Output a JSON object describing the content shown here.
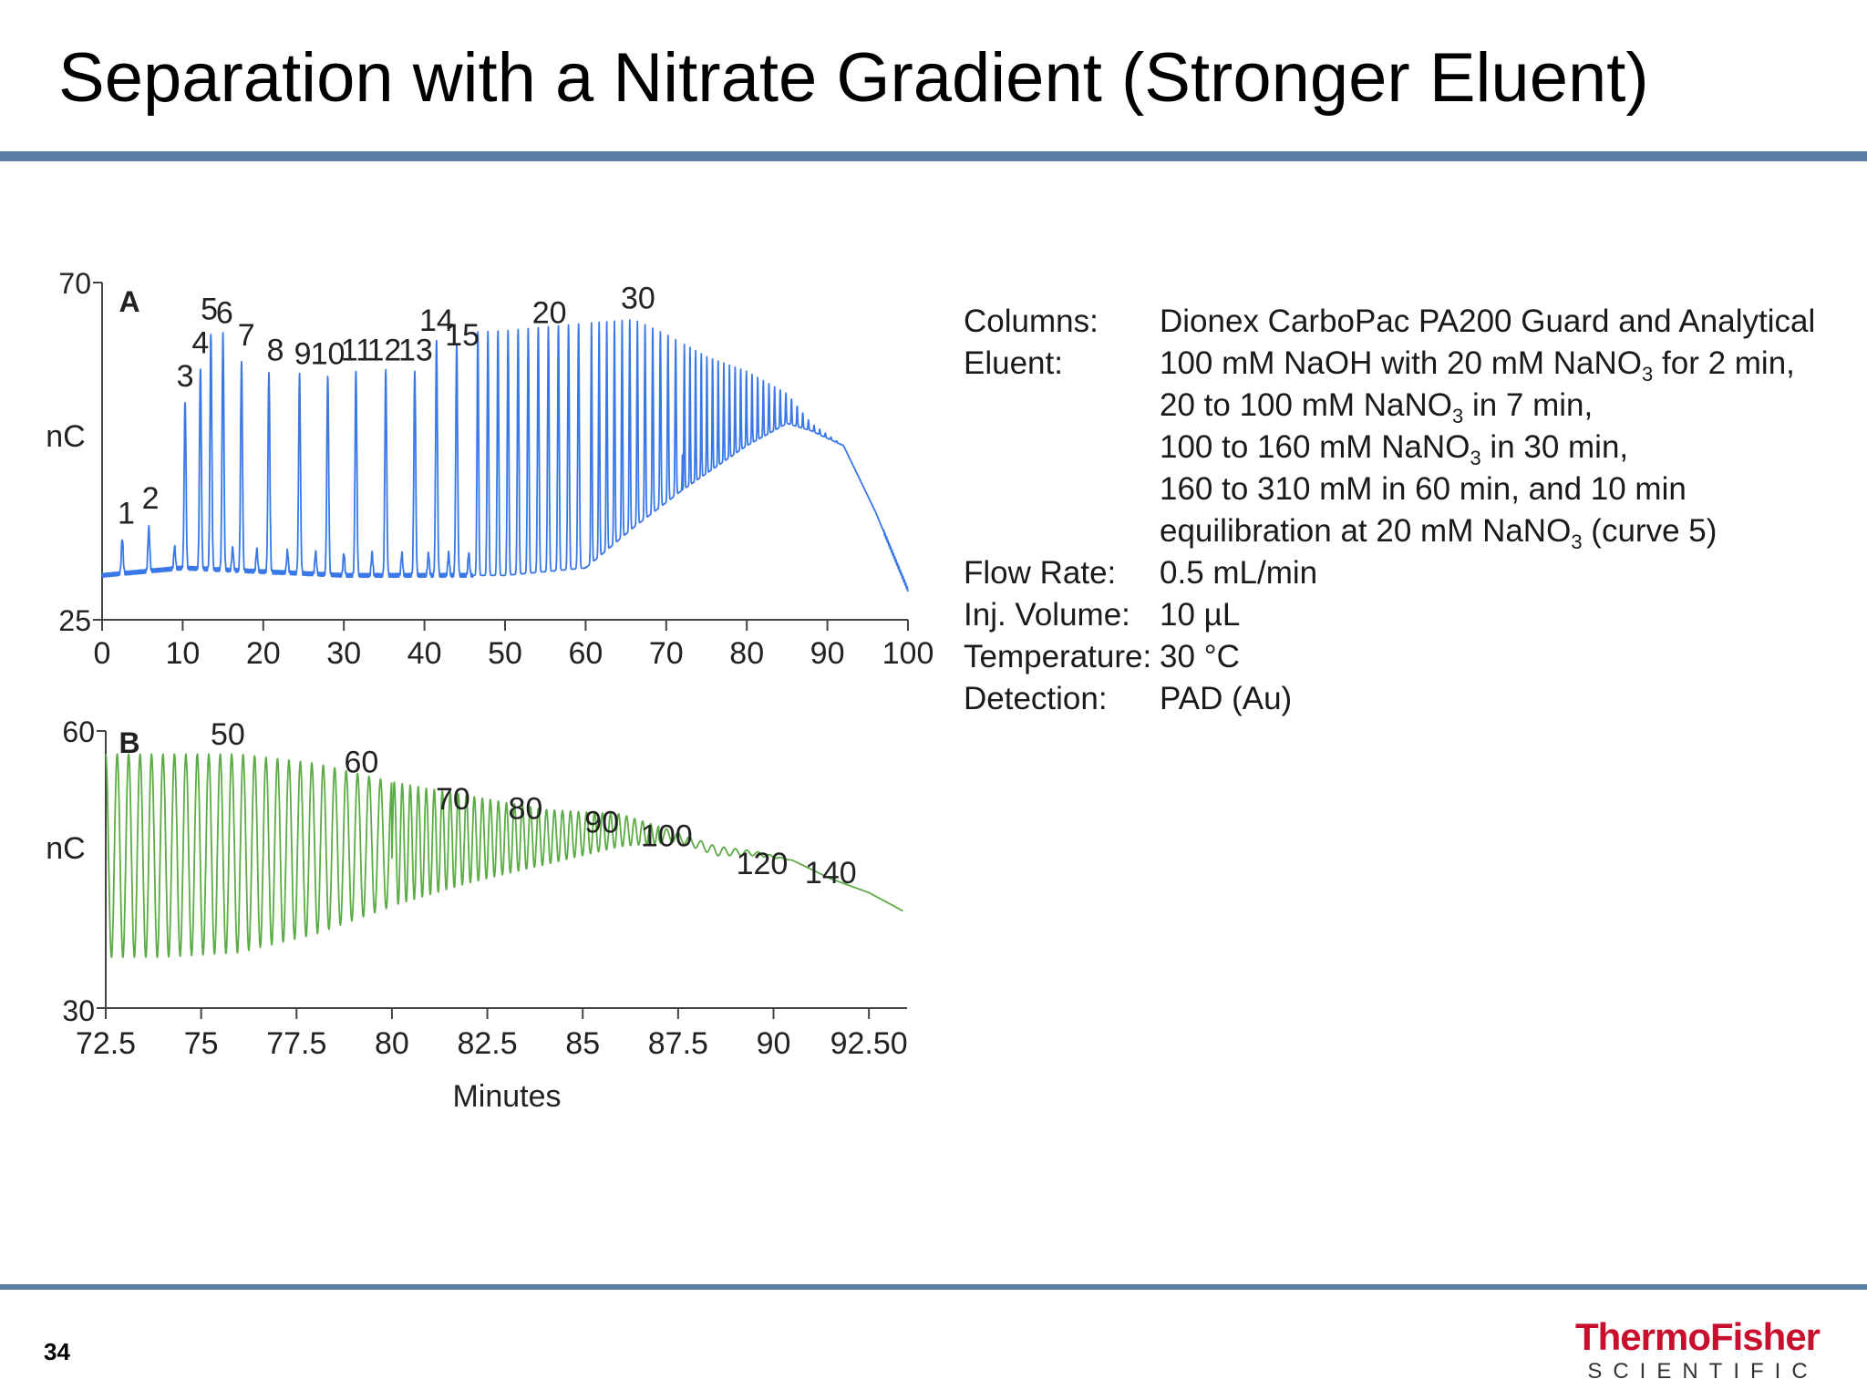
{
  "slide": {
    "title": "Separation with a Nitrate Gradient (Stronger Eluent)",
    "page_number": "34",
    "colors": {
      "accent_rule": "#5b7ea5",
      "brand": "#c8102e"
    }
  },
  "logo": {
    "brand": "ThermoFisher",
    "sub": "SCIENTIFIC"
  },
  "parameters": [
    {
      "label": "Columns:",
      "lines": [
        {
          "text": "Dionex CarboPac PA200 Guard and Analytical"
        }
      ]
    },
    {
      "label": "Eluent:",
      "lines": [
        {
          "text": "100 mM NaOH with 20 mM NaNO",
          "sub": "3",
          "after": " for 2 min,"
        },
        {
          "text": "20 to 100 mM  NaNO",
          "sub": "3",
          "after": " in 7 min,"
        },
        {
          "text": "100 to 160 mM NaNO",
          "sub": "3",
          "after": " in 30 min,"
        },
        {
          "text": "160 to 310 mM in 60 min, and 10 min"
        },
        {
          "text": "equilibration at 20 mM NaNO",
          "sub": "3",
          "after": " (curve 5)"
        }
      ]
    },
    {
      "label": "Flow Rate:",
      "lines": [
        {
          "text": "0.5 mL/min"
        }
      ]
    },
    {
      "label": "Inj. Volume:",
      "lines": [
        {
          "text": "10 µL"
        }
      ]
    },
    {
      "label": "Temperature:",
      "lines": [
        {
          "text": "30 °C"
        }
      ]
    },
    {
      "label": "Detection:",
      "lines": [
        {
          "text": "PAD (Au)"
        }
      ]
    }
  ],
  "chart_data": [
    {
      "type": "line",
      "panel_label": "A",
      "color": "#3a78e8",
      "xlim": [
        0,
        100
      ],
      "ylim": [
        25,
        70
      ],
      "x_ticks": [
        "0",
        "10",
        "20",
        "30",
        "40",
        "50",
        "60",
        "70",
        "80",
        "90",
        "100"
      ],
      "y_ticks": [
        "70",
        "25"
      ],
      "ylabel": "nC",
      "xlabel": "",
      "baseline": {
        "x": [
          0,
          10,
          30,
          50,
          60,
          66,
          72,
          80,
          85,
          88,
          92,
          96,
          100
        ],
        "y": [
          30.5,
          31.5,
          30.5,
          30.5,
          31.5,
          37,
          42,
          48,
          51,
          50,
          48,
          39,
          28.5
        ]
      },
      "envelope_top": {
        "x": [
          0,
          20,
          40,
          50,
          60,
          66,
          70,
          75,
          80,
          85,
          88,
          92,
          96,
          100
        ],
        "y": [
          30.5,
          62,
          63,
          63.5,
          64.5,
          65,
          63,
          60,
          58,
          55,
          51,
          48,
          39,
          28.5
        ]
      },
      "peaks": [
        {
          "label": "1",
          "x": 2.5,
          "height": 35.5,
          "label_x": 3,
          "label_y": 37.5
        },
        {
          "label": "2",
          "x": 5.8,
          "height": 37.0,
          "label_x": 6,
          "label_y": 39.5
        },
        {
          "label": "3",
          "x": 10.3,
          "height": 54.0,
          "label_x": 10.3,
          "label_y": 56.0
        },
        {
          "label": "4",
          "x": 12.2,
          "height": 58.5,
          "label_x": 12.2,
          "label_y": 60.5
        },
        {
          "label": "5",
          "x": 13.5,
          "height": 63.0,
          "label_x": 13.3,
          "label_y": 65.0
        },
        {
          "label": "6",
          "x": 15.0,
          "height": 63.0,
          "label_x": 15.2,
          "label_y": 64.5
        },
        {
          "label": "7",
          "x": 17.3,
          "height": 59.5,
          "label_x": 17.9,
          "label_y": 61.5
        },
        {
          "label": "8",
          "x": 20.7,
          "height": 58.0,
          "label_x": 21.5,
          "label_y": 59.5
        },
        {
          "label": "9",
          "x": 24.5,
          "height": 57.5,
          "label_x": 24.9,
          "label_y": 59.0
        },
        {
          "label": "10",
          "x": 28.0,
          "height": 57.5,
          "label_x": 28.0,
          "label_y": 59.0
        },
        {
          "label": "11",
          "x": 31.5,
          "height": 58.0,
          "label_x": 31.6,
          "label_y": 59.5
        },
        {
          "label": "12",
          "x": 35.2,
          "height": 58.0,
          "label_x": 35.0,
          "label_y": 59.5
        },
        {
          "label": "13",
          "x": 38.8,
          "height": 58.0,
          "label_x": 38.9,
          "label_y": 59.5
        },
        {
          "label": "14",
          "x": 41.5,
          "height": 62.0,
          "label_x": 41.5,
          "label_y": 63.5
        },
        {
          "label": "15",
          "x": 44.0,
          "height": 61.5,
          "label_x": 44.7,
          "label_y": 61.5
        },
        {
          "label": "20",
          "x": 56.0,
          "height": 62.5,
          "label_x": 55.5,
          "label_y": 64.5
        },
        {
          "label": "30",
          "x": 66.0,
          "height": 64.5,
          "label_x": 66.5,
          "label_y": 66.5
        }
      ]
    },
    {
      "type": "line",
      "panel_label": "B",
      "color": "#5cab46",
      "xlim": [
        72.5,
        93.5
      ],
      "ylim": [
        30,
        60
      ],
      "x_ticks": [
        "72.5",
        "75",
        "77.5",
        "80",
        "82.5",
        "85",
        "87.5",
        "90",
        "92.50"
      ],
      "x_tick_values": [
        72.5,
        75,
        77.5,
        80,
        82.5,
        85,
        87.5,
        90,
        92.5
      ],
      "y_ticks": [
        "60",
        "30"
      ],
      "ylabel": "nC",
      "xlabel": "Minutes",
      "envelope_top": {
        "x": [
          72.5,
          74,
          76,
          78,
          80,
          82,
          84,
          86,
          87.5,
          88.5,
          89.5,
          90.5,
          91.5,
          92.5,
          93.4
        ],
        "y": [
          57.5,
          57.5,
          57.5,
          56.5,
          54.5,
          53,
          51.5,
          51,
          49,
          47.5,
          47,
          46,
          44,
          42.5,
          40.5
        ]
      },
      "envelope_bottom": {
        "x": [
          72.5,
          74,
          76,
          78,
          80,
          82,
          84,
          86,
          87.5,
          88.5,
          89.5,
          90.5,
          91.5,
          92.5,
          93.4
        ],
        "y": [
          35.5,
          35.5,
          36,
          38,
          41,
          43.5,
          45.5,
          47.5,
          48,
          46.5,
          46.5,
          46,
          44,
          42.5,
          40.5
        ]
      },
      "peak_labels": [
        {
          "label": "50",
          "x": 75.7,
          "y": 58.5
        },
        {
          "label": "60",
          "x": 79.2,
          "y": 55.5
        },
        {
          "label": "70",
          "x": 81.6,
          "y": 51.5
        },
        {
          "label": "80",
          "x": 83.5,
          "y": 50.5
        },
        {
          "label": "90",
          "x": 85.5,
          "y": 49.0
        },
        {
          "label": "100",
          "x": 87.2,
          "y": 47.5
        },
        {
          "label": "120",
          "x": 89.7,
          "y": 44.5
        },
        {
          "label": "140",
          "x": 91.5,
          "y": 43.5
        }
      ]
    }
  ]
}
